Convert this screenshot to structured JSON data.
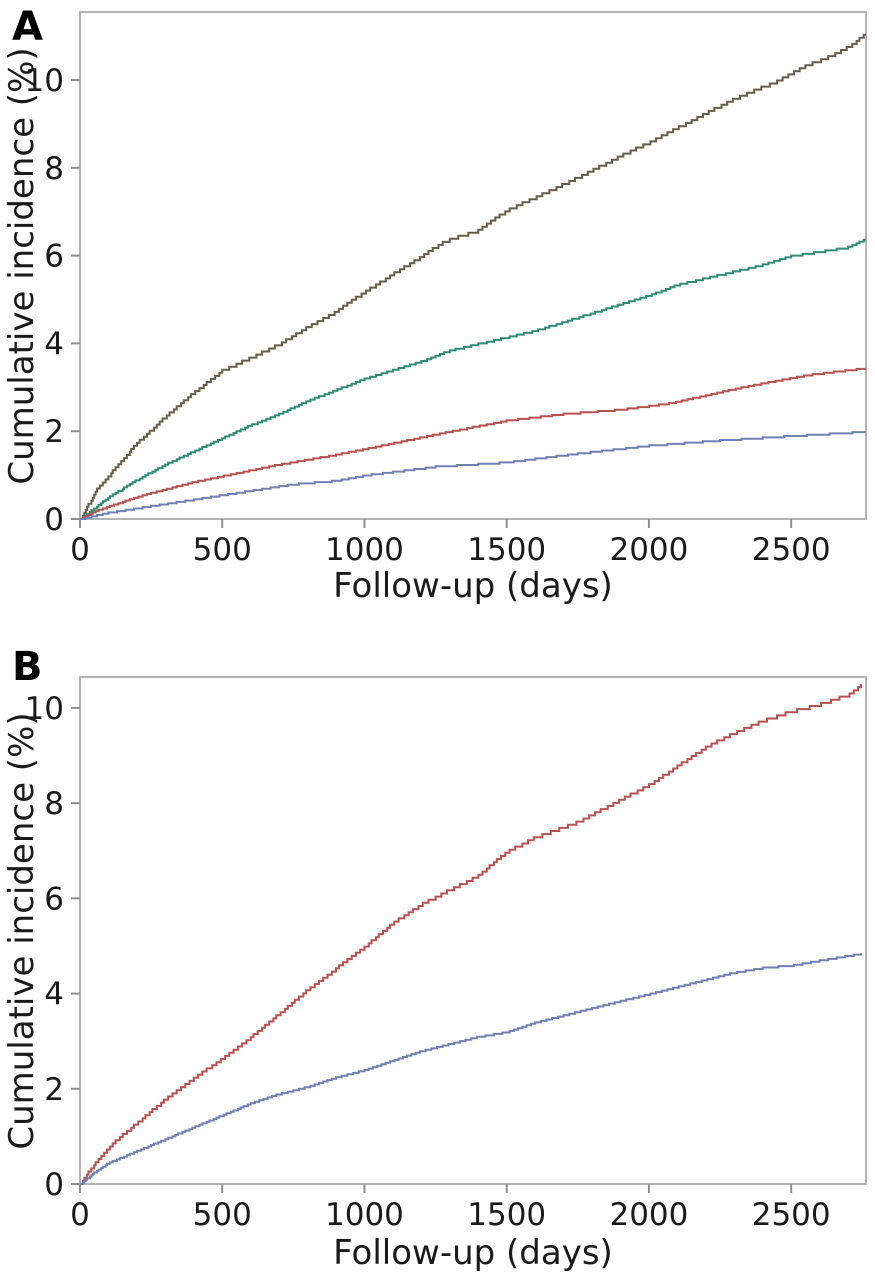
{
  "colors": {
    "background": "#ffffff",
    "border": "#b3b3b3",
    "tick": "#8f8f8f",
    "text": "#1a1a1a",
    "olive_brown": "#6a5b44",
    "teal": "#2e8b76",
    "red": "#b5524e",
    "blue": "#6f80b2"
  },
  "chart_data": [
    {
      "type": "line",
      "subtype": "cumulative-incidence-step-curves",
      "panel_label": "A",
      "title": "",
      "xlabel": "Follow-up (days)",
      "ylabel": "Cumulative incidence (%)",
      "x_ticks": [
        0,
        500,
        1000,
        1500,
        2000,
        2500
      ],
      "y_ticks": [
        0,
        2,
        4,
        6,
        8,
        10
      ],
      "xlim": [
        0,
        2763
      ],
      "ylim": [
        0,
        11.55
      ],
      "grid": false,
      "legend": "none",
      "series": [
        {
          "name": "olive-brown",
          "color": "#6a5b44",
          "points": [
            [
              0,
              0
            ],
            [
              60,
              0.7
            ],
            [
              120,
              1.15
            ],
            [
              200,
              1.75
            ],
            [
              250,
              2.05
            ],
            [
              300,
              2.35
            ],
            [
              400,
              2.9
            ],
            [
              500,
              3.4
            ],
            [
              600,
              3.7
            ],
            [
              700,
              4.0
            ],
            [
              800,
              4.4
            ],
            [
              900,
              4.75
            ],
            [
              1000,
              5.2
            ],
            [
              1100,
              5.6
            ],
            [
              1200,
              6.0
            ],
            [
              1280,
              6.35
            ],
            [
              1400,
              6.6
            ],
            [
              1500,
              7.05
            ],
            [
              1600,
              7.35
            ],
            [
              1750,
              7.8
            ],
            [
              1900,
              8.3
            ],
            [
              2000,
              8.6
            ],
            [
              2150,
              9.1
            ],
            [
              2300,
              9.6
            ],
            [
              2450,
              10.0
            ],
            [
              2550,
              10.35
            ],
            [
              2650,
              10.6
            ],
            [
              2720,
              10.85
            ],
            [
              2763,
              11.1
            ]
          ]
        },
        {
          "name": "teal",
          "color": "#2e8b76",
          "points": [
            [
              0,
              0
            ],
            [
              100,
              0.5
            ],
            [
              200,
              0.9
            ],
            [
              300,
              1.25
            ],
            [
              400,
              1.55
            ],
            [
              500,
              1.85
            ],
            [
              600,
              2.15
            ],
            [
              700,
              2.4
            ],
            [
              800,
              2.7
            ],
            [
              900,
              2.95
            ],
            [
              1000,
              3.2
            ],
            [
              1100,
              3.4
            ],
            [
              1200,
              3.6
            ],
            [
              1300,
              3.85
            ],
            [
              1400,
              4.0
            ],
            [
              1500,
              4.15
            ],
            [
              1600,
              4.3
            ],
            [
              1700,
              4.5
            ],
            [
              1800,
              4.7
            ],
            [
              1900,
              4.9
            ],
            [
              2000,
              5.1
            ],
            [
              2100,
              5.35
            ],
            [
              2200,
              5.5
            ],
            [
              2300,
              5.65
            ],
            [
              2400,
              5.8
            ],
            [
              2500,
              6.0
            ],
            [
              2600,
              6.1
            ],
            [
              2700,
              6.2
            ],
            [
              2763,
              6.4
            ]
          ]
        },
        {
          "name": "red",
          "color": "#b5524e",
          "points": [
            [
              0,
              0
            ],
            [
              60,
              0.2
            ],
            [
              150,
              0.4
            ],
            [
              250,
              0.6
            ],
            [
              400,
              0.85
            ],
            [
              550,
              1.05
            ],
            [
              700,
              1.25
            ],
            [
              880,
              1.45
            ],
            [
              1000,
              1.6
            ],
            [
              1150,
              1.8
            ],
            [
              1300,
              2.0
            ],
            [
              1500,
              2.25
            ],
            [
              1700,
              2.4
            ],
            [
              1900,
              2.5
            ],
            [
              2080,
              2.65
            ],
            [
              2250,
              2.9
            ],
            [
              2400,
              3.1
            ],
            [
              2550,
              3.28
            ],
            [
              2700,
              3.4
            ],
            [
              2763,
              3.45
            ]
          ]
        },
        {
          "name": "blue",
          "color": "#6f80b2",
          "points": [
            [
              0,
              0
            ],
            [
              100,
              0.15
            ],
            [
              250,
              0.3
            ],
            [
              500,
              0.55
            ],
            [
              750,
              0.8
            ],
            [
              900,
              0.88
            ],
            [
              1000,
              1.0
            ],
            [
              1250,
              1.2
            ],
            [
              1500,
              1.3
            ],
            [
              1750,
              1.5
            ],
            [
              2000,
              1.68
            ],
            [
              2250,
              1.8
            ],
            [
              2500,
              1.9
            ],
            [
              2763,
              2.0
            ]
          ]
        }
      ]
    },
    {
      "type": "line",
      "subtype": "cumulative-incidence-step-curves",
      "panel_label": "B",
      "title": "",
      "xlabel": "Follow-up (days)",
      "ylabel": "Cumulative incidence (%)",
      "x_ticks": [
        0,
        500,
        1000,
        1500,
        2000,
        2500
      ],
      "y_ticks": [
        0,
        2,
        4,
        6,
        8,
        10
      ],
      "xlim": [
        0,
        2763
      ],
      "ylim": [
        0,
        10.65
      ],
      "grid": false,
      "legend": "none",
      "series": [
        {
          "name": "red",
          "color": "#b5524e",
          "points": [
            [
              0,
              0
            ],
            [
              40,
              0.35
            ],
            [
              80,
              0.65
            ],
            [
              120,
              0.9
            ],
            [
              200,
              1.3
            ],
            [
              300,
              1.8
            ],
            [
              400,
              2.25
            ],
            [
              500,
              2.65
            ],
            [
              600,
              3.1
            ],
            [
              700,
              3.6
            ],
            [
              800,
              4.1
            ],
            [
              900,
              4.55
            ],
            [
              1000,
              5.0
            ],
            [
              1100,
              5.5
            ],
            [
              1200,
              5.9
            ],
            [
              1300,
              6.2
            ],
            [
              1400,
              6.5
            ],
            [
              1500,
              7.0
            ],
            [
              1600,
              7.3
            ],
            [
              1760,
              7.65
            ],
            [
              1900,
              8.1
            ],
            [
              2000,
              8.4
            ],
            [
              2100,
              8.8
            ],
            [
              2200,
              9.2
            ],
            [
              2300,
              9.5
            ],
            [
              2400,
              9.75
            ],
            [
              2500,
              9.95
            ],
            [
              2600,
              10.1
            ],
            [
              2700,
              10.3
            ],
            [
              2745,
              10.5
            ]
          ]
        },
        {
          "name": "blue",
          "color": "#6f80b2",
          "points": [
            [
              0,
              0
            ],
            [
              50,
              0.25
            ],
            [
              100,
              0.45
            ],
            [
              200,
              0.7
            ],
            [
              300,
              0.95
            ],
            [
              400,
              1.2
            ],
            [
              500,
              1.45
            ],
            [
              600,
              1.7
            ],
            [
              700,
              1.9
            ],
            [
              800,
              2.05
            ],
            [
              900,
              2.25
            ],
            [
              1000,
              2.4
            ],
            [
              1100,
              2.6
            ],
            [
              1200,
              2.8
            ],
            [
              1300,
              2.95
            ],
            [
              1400,
              3.1
            ],
            [
              1500,
              3.2
            ],
            [
              1600,
              3.4
            ],
            [
              1700,
              3.55
            ],
            [
              1800,
              3.7
            ],
            [
              1900,
              3.85
            ],
            [
              2000,
              4.0
            ],
            [
              2100,
              4.15
            ],
            [
              2200,
              4.3
            ],
            [
              2300,
              4.45
            ],
            [
              2400,
              4.55
            ],
            [
              2500,
              4.6
            ],
            [
              2600,
              4.7
            ],
            [
              2745,
              4.85
            ]
          ]
        }
      ]
    }
  ]
}
